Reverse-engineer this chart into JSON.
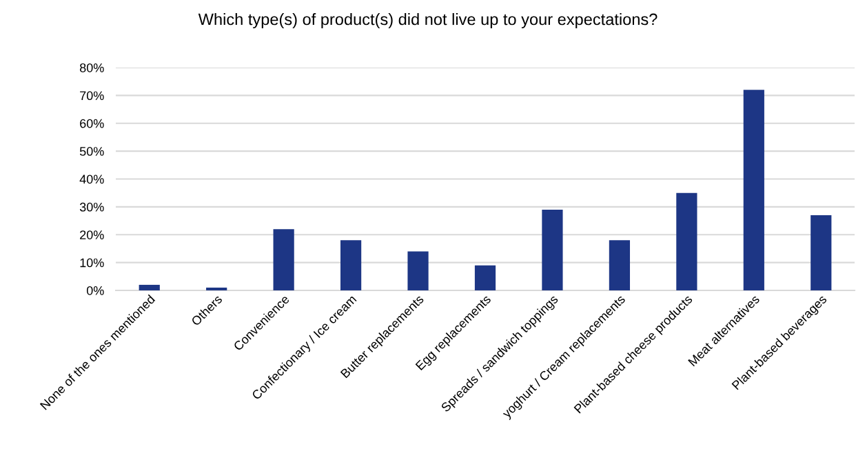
{
  "chart_data": {
    "type": "bar",
    "title": "Which type(s) of product(s) did not live up to your expectations?",
    "categories": [
      "None of the ones mentioned",
      "Others",
      "Convenience",
      "Confectionary / Ice cream",
      "Butter replacements",
      "Egg replacements",
      "Spreads / sandwich toppings",
      "yoghurt / Cream replacements",
      "Plant-based cheese products",
      "Meat alternatives",
      "Plant-based beverages"
    ],
    "values": [
      2,
      1,
      22,
      18,
      14,
      9,
      29,
      18,
      35,
      72,
      27
    ],
    "color": "#1d3685",
    "ylim": [
      0,
      80
    ],
    "yticks": [
      {
        "value": 0,
        "label": "0%"
      },
      {
        "value": 10,
        "label": "10%"
      },
      {
        "value": 20,
        "label": "20%"
      },
      {
        "value": 30,
        "label": "30%"
      },
      {
        "value": 40,
        "label": "40%"
      },
      {
        "value": 50,
        "label": "50%"
      },
      {
        "value": 60,
        "label": "60%"
      },
      {
        "value": 70,
        "label": "70%"
      },
      {
        "value": 80,
        "label": "80%"
      }
    ],
    "grid": "y"
  }
}
